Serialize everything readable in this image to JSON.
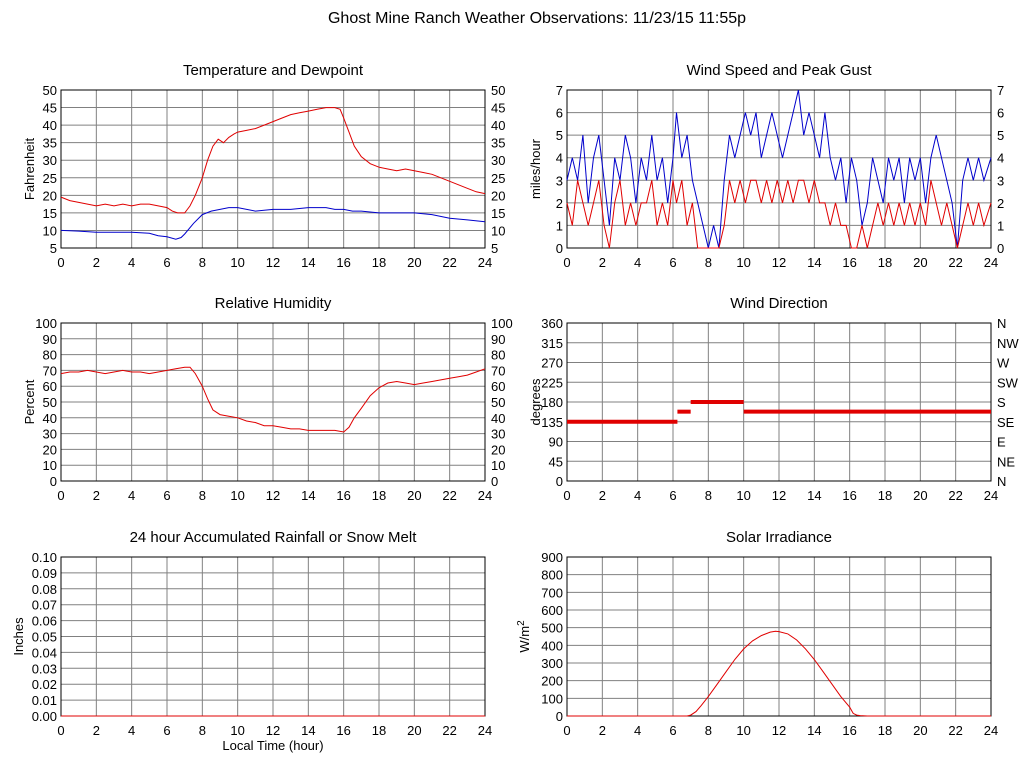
{
  "page": {
    "title": "Ghost Mine Ranch Weather Observations: 11/23/15 11:55p"
  },
  "colors": {
    "primary_series": "#e00000",
    "secondary_series": "#0000cc",
    "grid": "#808080",
    "frame": "#000000"
  },
  "chart_data": [
    {
      "id": "temperature",
      "type": "line",
      "title": "Temperature and Dewpoint",
      "ylabel": "Fahrenheit",
      "xlabel": "",
      "xlim": [
        0,
        24
      ],
      "ylim": [
        5,
        50
      ],
      "xticks": [
        0,
        2,
        4,
        6,
        8,
        10,
        12,
        14,
        16,
        18,
        20,
        22,
        24
      ],
      "yticks": [
        5,
        10,
        15,
        20,
        25,
        30,
        35,
        40,
        45,
        50
      ],
      "right_ticks": [
        "5",
        "10",
        "15",
        "20",
        "25",
        "30",
        "35",
        "40",
        "45",
        "50"
      ],
      "grid": true,
      "series": [
        {
          "color": "#e00000",
          "x": [
            0,
            0.5,
            1,
            1.5,
            2,
            2.5,
            3,
            3.5,
            4,
            4.5,
            5,
            5.5,
            6,
            6.3,
            6.6,
            7,
            7.3,
            7.6,
            8,
            8.3,
            8.6,
            8.9,
            9.2,
            9.5,
            9.8,
            10,
            10.5,
            11,
            11.5,
            12,
            12.5,
            13,
            13.5,
            14,
            14.5,
            15,
            15.5,
            15.8,
            16,
            16.3,
            16.6,
            17,
            17.5,
            18,
            18.5,
            19,
            19.5,
            20,
            20.5,
            21,
            21.5,
            22,
            22.5,
            23,
            23.5,
            24
          ],
          "values": [
            19.5,
            18.5,
            18,
            17.5,
            17,
            17.5,
            17,
            17.5,
            17,
            17.5,
            17.5,
            17,
            16.5,
            15.5,
            15,
            15,
            17,
            20,
            25,
            30,
            34,
            36,
            35,
            36.5,
            37.5,
            38,
            38.5,
            39,
            40,
            41,
            42,
            43,
            43.5,
            44,
            44.5,
            45,
            45,
            44.5,
            42,
            38,
            34,
            31,
            29,
            28,
            27.5,
            27,
            27.5,
            27,
            26.5,
            26,
            25,
            24,
            23,
            22,
            21,
            20.5
          ]
        },
        {
          "color": "#0000cc",
          "x": [
            0,
            1,
            2,
            3,
            4,
            5,
            5.5,
            6,
            6.5,
            6.8,
            7,
            7.5,
            8,
            8.5,
            9,
            9.5,
            10,
            11,
            12,
            13,
            14,
            15,
            15.5,
            16,
            16.5,
            17,
            18,
            19,
            20,
            21,
            22,
            23,
            24
          ],
          "values": [
            10,
            9.8,
            9.5,
            9.5,
            9.5,
            9.2,
            8.5,
            8.2,
            7.5,
            8,
            9,
            12,
            14.5,
            15.5,
            16,
            16.5,
            16.5,
            15.5,
            16,
            16,
            16.5,
            16.5,
            16,
            16,
            15.5,
            15.5,
            15,
            15,
            15,
            14.5,
            13.5,
            13,
            12.5
          ]
        }
      ]
    },
    {
      "id": "wind-speed",
      "type": "line",
      "title": "Wind Speed and Peak Gust",
      "ylabel": "miles/hour",
      "xlabel": "",
      "xlim": [
        0,
        24
      ],
      "ylim": [
        0,
        7
      ],
      "xticks": [
        0,
        2,
        4,
        6,
        8,
        10,
        12,
        14,
        16,
        18,
        20,
        22,
        24
      ],
      "yticks": [
        0,
        1,
        2,
        3,
        4,
        5,
        6,
        7
      ],
      "right_ticks": [
        "0",
        "1",
        "2",
        "3",
        "4",
        "5",
        "6",
        "7"
      ],
      "grid": true,
      "series": [
        {
          "color": "#0000cc",
          "x": [
            0,
            0.3,
            0.6,
            0.9,
            1.2,
            1.5,
            1.8,
            2.1,
            2.4,
            2.7,
            3,
            3.3,
            3.6,
            3.9,
            4.2,
            4.5,
            4.8,
            5.1,
            5.4,
            5.7,
            6,
            6.2,
            6.5,
            6.8,
            7.1,
            7.4,
            7.7,
            8,
            8.3,
            8.6,
            8.9,
            9.2,
            9.5,
            9.8,
            10.1,
            10.4,
            10.7,
            11,
            11.3,
            11.6,
            11.9,
            12.2,
            12.5,
            12.8,
            13.1,
            13.4,
            13.7,
            14,
            14.3,
            14.6,
            14.9,
            15.2,
            15.5,
            15.8,
            16.1,
            16.4,
            16.7,
            17,
            17.3,
            17.6,
            17.9,
            18.2,
            18.5,
            18.8,
            19.1,
            19.4,
            19.7,
            20,
            20.3,
            20.6,
            20.9,
            21.2,
            21.5,
            21.8,
            22.1,
            22.4,
            22.7,
            23,
            23.3,
            23.6,
            24
          ],
          "values": [
            3,
            4,
            3,
            5,
            2,
            4,
            5,
            3,
            1,
            4,
            3,
            5,
            4,
            2,
            4,
            3,
            5,
            3,
            4,
            2,
            4,
            6,
            4,
            5,
            3,
            2,
            1,
            0,
            1,
            0,
            3,
            5,
            4,
            5,
            6,
            5,
            6,
            4,
            5,
            6,
            5,
            4,
            5,
            6,
            7,
            5,
            6,
            5,
            4,
            6,
            4,
            3,
            4,
            2,
            4,
            3,
            1,
            2,
            4,
            3,
            2,
            4,
            3,
            4,
            2,
            4,
            3,
            4,
            2,
            4,
            5,
            4,
            3,
            2,
            0,
            3,
            4,
            3,
            4,
            3,
            4
          ]
        },
        {
          "color": "#e00000",
          "x": [
            0,
            0.3,
            0.6,
            0.9,
            1.2,
            1.5,
            1.8,
            2.1,
            2.4,
            2.7,
            3,
            3.3,
            3.6,
            3.9,
            4.2,
            4.5,
            4.8,
            5.1,
            5.4,
            5.7,
            6,
            6.2,
            6.5,
            6.8,
            7.1,
            7.4,
            7.7,
            8,
            8.3,
            8.6,
            8.9,
            9.2,
            9.5,
            9.8,
            10.1,
            10.4,
            10.7,
            11,
            11.3,
            11.6,
            11.9,
            12.2,
            12.5,
            12.8,
            13.1,
            13.4,
            13.7,
            14,
            14.3,
            14.6,
            14.9,
            15.2,
            15.5,
            15.8,
            16.1,
            16.4,
            16.7,
            17,
            17.3,
            17.6,
            17.9,
            18.2,
            18.5,
            18.8,
            19.1,
            19.4,
            19.7,
            20,
            20.3,
            20.6,
            20.9,
            21.2,
            21.5,
            21.8,
            22.1,
            22.4,
            22.7,
            23,
            23.3,
            23.6,
            24
          ],
          "values": [
            2,
            1,
            3,
            2,
            1,
            2,
            3,
            1,
            0,
            2,
            3,
            1,
            2,
            1,
            2,
            2,
            3,
            1,
            2,
            1,
            3,
            2,
            3,
            1,
            2,
            0,
            0,
            0,
            0,
            0,
            1,
            3,
            2,
            3,
            2,
            3,
            3,
            2,
            3,
            2,
            3,
            2,
            3,
            2,
            3,
            3,
            2,
            3,
            2,
            2,
            1,
            2,
            1,
            1,
            0,
            0,
            1,
            0,
            1,
            2,
            1,
            2,
            1,
            2,
            1,
            2,
            1,
            2,
            1,
            3,
            2,
            1,
            2,
            1,
            0,
            1,
            2,
            1,
            2,
            1,
            2
          ]
        }
      ]
    },
    {
      "id": "humidity",
      "type": "line",
      "title": "Relative Humidity",
      "ylabel": "Percent",
      "xlabel": "",
      "xlim": [
        0,
        24
      ],
      "ylim": [
        0,
        100
      ],
      "xticks": [
        0,
        2,
        4,
        6,
        8,
        10,
        12,
        14,
        16,
        18,
        20,
        22,
        24
      ],
      "yticks": [
        0,
        10,
        20,
        30,
        40,
        50,
        60,
        70,
        80,
        90,
        100
      ],
      "right_ticks": [
        "0",
        "10",
        "20",
        "30",
        "40",
        "50",
        "60",
        "70",
        "80",
        "90",
        "100"
      ],
      "grid": true,
      "series": [
        {
          "color": "#e00000",
          "x": [
            0,
            0.5,
            1,
            1.5,
            2,
            2.5,
            3,
            3.5,
            4,
            4.5,
            5,
            5.5,
            6,
            6.5,
            7,
            7.3,
            7.6,
            8,
            8.3,
            8.6,
            9,
            9.5,
            10,
            10.5,
            11,
            11.5,
            12,
            12.5,
            13,
            13.5,
            14,
            14.5,
            15,
            15.5,
            16,
            16.3,
            16.6,
            17,
            17.5,
            18,
            18.5,
            19,
            19.5,
            20,
            20.5,
            21,
            21.5,
            22,
            22.5,
            23,
            23.5,
            24
          ],
          "values": [
            68,
            69,
            69,
            70,
            69,
            68,
            69,
            70,
            69,
            69,
            68,
            69,
            70,
            71,
            72,
            72,
            68,
            60,
            52,
            45,
            42,
            41,
            40,
            38,
            37,
            35,
            35,
            34,
            33,
            33,
            32,
            32,
            32,
            32,
            31,
            34,
            40,
            46,
            54,
            59,
            62,
            63,
            62,
            61,
            62,
            63,
            64,
            65,
            66,
            67,
            69,
            71
          ]
        }
      ]
    },
    {
      "id": "wind-direction",
      "type": "scatter",
      "title": "Wind Direction",
      "ylabel": "degrees",
      "xlabel": "",
      "xlim": [
        0,
        24
      ],
      "ylim": [
        0,
        360
      ],
      "xticks": [
        0,
        2,
        4,
        6,
        8,
        10,
        12,
        14,
        16,
        18,
        20,
        22,
        24
      ],
      "yticks": [
        0,
        45,
        90,
        135,
        180,
        225,
        270,
        315,
        360
      ],
      "right_ticks": [
        "N",
        "NE",
        "E",
        "SE",
        "S",
        "SW",
        "W",
        "NW",
        "N"
      ],
      "grid": true,
      "segments": [
        {
          "color": "#e00000",
          "x": [
            0,
            6.25
          ],
          "value": 135
        },
        {
          "color": "#e00000",
          "x": [
            6.25,
            7.0
          ],
          "value": 158
        },
        {
          "color": "#e00000",
          "x": [
            7.0,
            10.0
          ],
          "value": 180
        },
        {
          "color": "#e00000",
          "x": [
            10.0,
            24.0
          ],
          "value": 158
        }
      ]
    },
    {
      "id": "rainfall",
      "type": "line",
      "title": "24 hour Accumulated Rainfall or Snow Melt",
      "ylabel": "Inches",
      "xlabel": "Local Time (hour)",
      "xlim": [
        0,
        24
      ],
      "ylim": [
        0,
        0.1
      ],
      "xticks": [
        0,
        2,
        4,
        6,
        8,
        10,
        12,
        14,
        16,
        18,
        20,
        22,
        24
      ],
      "yticks": [
        0,
        0.01,
        0.02,
        0.03,
        0.04,
        0.05,
        0.06,
        0.07,
        0.08,
        0.09,
        0.1
      ],
      "ytick_labels": [
        "0.00",
        "0.01",
        "0.02",
        "0.03",
        "0.04",
        "0.05",
        "0.06",
        "0.07",
        "0.08",
        "0.09",
        "0.10"
      ],
      "grid": true,
      "series": [
        {
          "color": "#e00000",
          "x": [
            0,
            24
          ],
          "values": [
            0,
            0
          ]
        }
      ]
    },
    {
      "id": "solar",
      "type": "line",
      "title": "Solar Irradiance",
      "ylabel": "W/m",
      "ylabel_sup": "2",
      "xlabel": "",
      "xlim": [
        0,
        24
      ],
      "ylim": [
        0,
        900
      ],
      "xticks": [
        0,
        2,
        4,
        6,
        8,
        10,
        12,
        14,
        16,
        18,
        20,
        22,
        24
      ],
      "yticks": [
        0,
        100,
        200,
        300,
        400,
        500,
        600,
        700,
        800,
        900
      ],
      "grid": true,
      "series": [
        {
          "color": "#e00000",
          "x": [
            0,
            6.8,
            7,
            7.3,
            7.6,
            8,
            8.5,
            9,
            9.5,
            10,
            10.5,
            11,
            11.5,
            11.8,
            12,
            12.5,
            13,
            13.5,
            14,
            14.5,
            15,
            15.5,
            16,
            16.2,
            16.4,
            16.6,
            17,
            24
          ],
          "values": [
            0,
            0,
            5,
            25,
            60,
            110,
            180,
            250,
            320,
            380,
            425,
            455,
            475,
            480,
            478,
            465,
            430,
            380,
            320,
            250,
            180,
            110,
            50,
            15,
            5,
            2,
            0,
            0
          ]
        }
      ]
    }
  ]
}
